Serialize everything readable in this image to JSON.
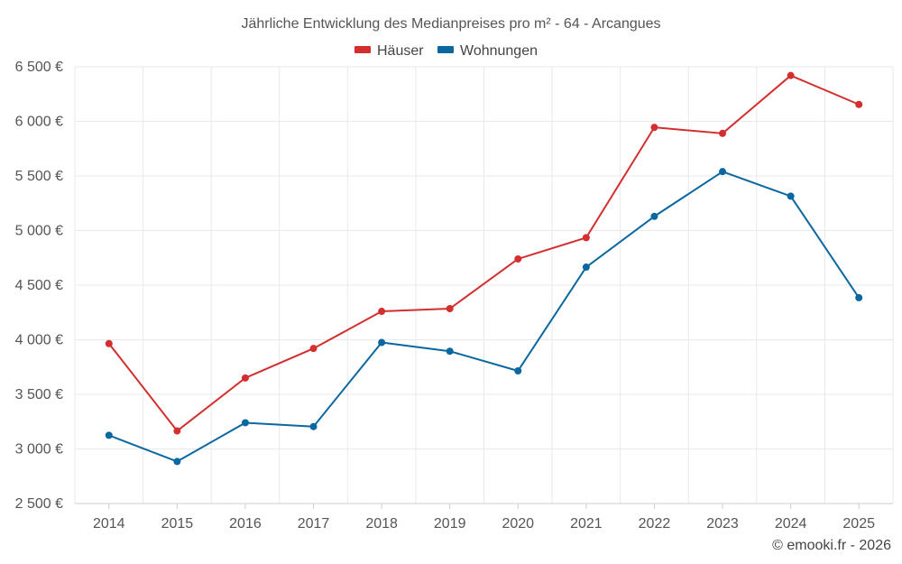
{
  "chart_data": {
    "type": "line",
    "title": "Jährliche Entwicklung des Medianpreises pro m² - 64 - Arcangues",
    "categories": [
      "2014",
      "2015",
      "2016",
      "2017",
      "2018",
      "2019",
      "2020",
      "2021",
      "2022",
      "2023",
      "2024",
      "2025"
    ],
    "y_ticks": [
      "2 500 €",
      "3 000 €",
      "3 500 €",
      "4 000 €",
      "4 500 €",
      "5 000 €",
      "5 500 €",
      "6 000 €",
      "6 500 €"
    ],
    "ylim": [
      2500,
      6500
    ],
    "ytick_step": 500,
    "grid": true,
    "legend_position": "top-center",
    "series": [
      {
        "name": "Häuser",
        "color": "#d32f2f",
        "values": [
          3965,
          3165,
          3650,
          3920,
          4260,
          4285,
          4740,
          4935,
          5945,
          5890,
          6420,
          6155
        ]
      },
      {
        "name": "Wohnungen",
        "color": "#0b67a0",
        "values": [
          3125,
          2885,
          3240,
          3205,
          3975,
          3895,
          3715,
          4665,
          5130,
          5540,
          5315,
          4385
        ]
      }
    ]
  },
  "credit": "© emooki.fr - 2026"
}
